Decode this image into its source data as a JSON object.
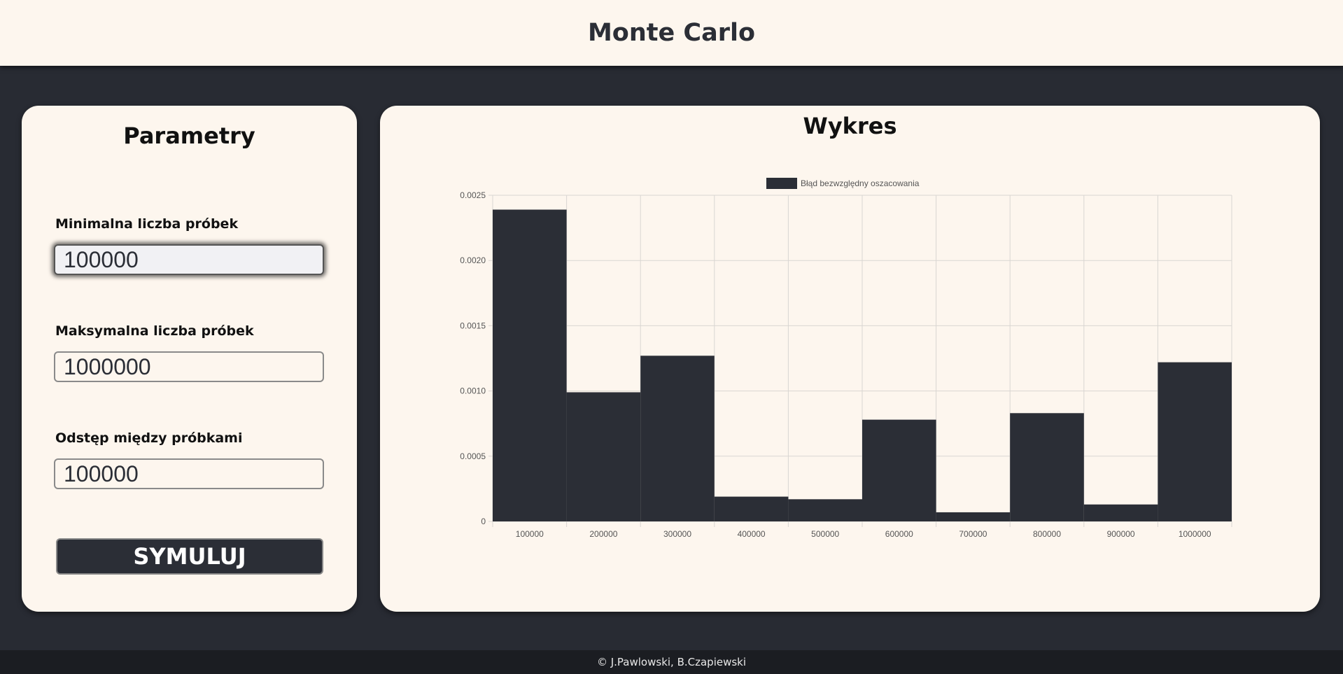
{
  "header": {
    "title": "Monte Carlo"
  },
  "params": {
    "title": "Parametry",
    "fields": [
      {
        "label": "Minimalna liczba próbek",
        "value": "100000"
      },
      {
        "label": "Maksymalna liczba próbek",
        "value": "1000000"
      },
      {
        "label": "Odstęp między próbkami",
        "value": "100000"
      }
    ],
    "run_label": "SYMULUJ"
  },
  "chart_panel": {
    "title": "Wykres"
  },
  "chart_data": {
    "type": "bar",
    "categories": [
      "100000",
      "200000",
      "300000",
      "400000",
      "500000",
      "600000",
      "700000",
      "800000",
      "900000",
      "1000000"
    ],
    "series": [
      {
        "name": "Błąd bezwzględny oszacowania",
        "values": [
          0.00239,
          0.00099,
          0.00127,
          0.00019,
          0.00017,
          0.00078,
          7e-05,
          0.00083,
          0.00013,
          0.00122
        ]
      }
    ],
    "yticks": [
      "0",
      "0.0005",
      "0.0010",
      "0.0015",
      "0.0020",
      "0.0025"
    ],
    "ylim": [
      0,
      0.0025
    ],
    "grid": true,
    "legend": "top-center",
    "bar_color": "#2b2e36"
  },
  "footer": {
    "text": "© J.Pawlowski, B.Czapiewski"
  }
}
